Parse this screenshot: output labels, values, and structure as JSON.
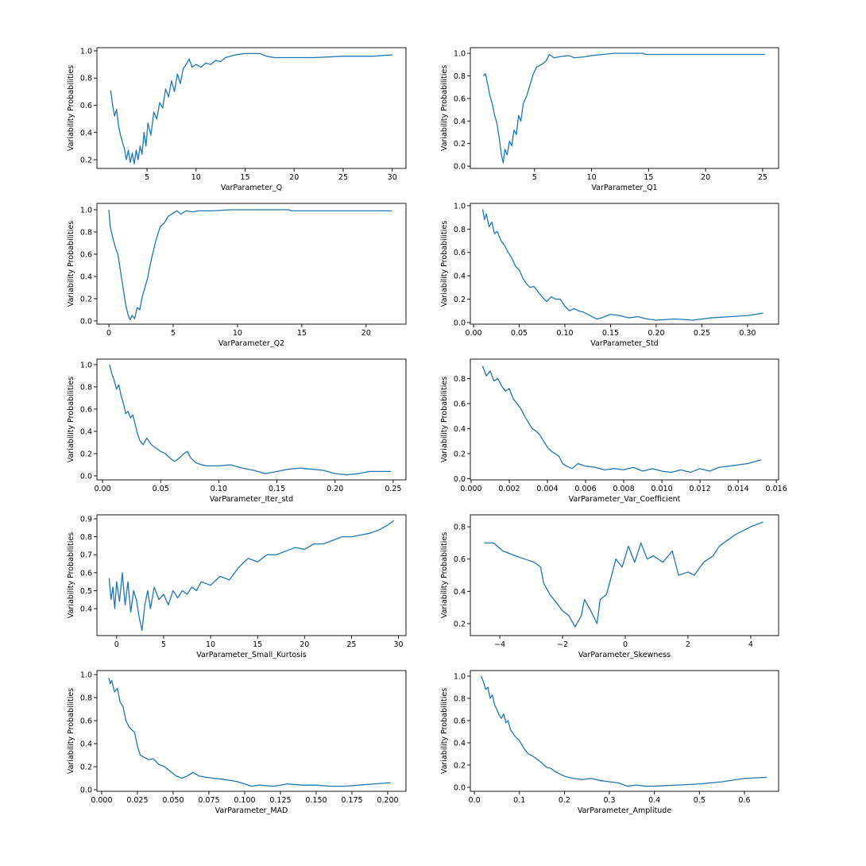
{
  "chart_data": [
    {
      "type": "line",
      "xlabel": "VarParameter_Q",
      "ylabel": "Variability Probabilities",
      "color": "#1f77b4",
      "x": [
        1.3,
        1.5,
        1.7,
        1.9,
        2.1,
        2.3,
        2.5,
        2.7,
        2.9,
        3.1,
        3.3,
        3.5,
        3.7,
        3.9,
        4.1,
        4.3,
        4.5,
        4.7,
        4.9,
        5.1,
        5.4,
        5.7,
        6.0,
        6.3,
        6.6,
        6.9,
        7.2,
        7.5,
        7.8,
        8.1,
        8.4,
        8.7,
        9.0,
        9.3,
        9.6,
        10,
        10.5,
        11,
        11.5,
        12,
        12.5,
        13,
        14,
        15,
        16.5,
        17.2,
        18,
        20,
        22,
        25,
        28,
        30
      ],
      "values": [
        0.71,
        0.6,
        0.52,
        0.57,
        0.45,
        0.38,
        0.33,
        0.28,
        0.2,
        0.27,
        0.18,
        0.25,
        0.17,
        0.27,
        0.2,
        0.3,
        0.24,
        0.4,
        0.3,
        0.47,
        0.38,
        0.55,
        0.5,
        0.62,
        0.58,
        0.72,
        0.66,
        0.78,
        0.7,
        0.83,
        0.76,
        0.87,
        0.9,
        0.94,
        0.88,
        0.9,
        0.88,
        0.91,
        0.9,
        0.93,
        0.92,
        0.95,
        0.97,
        0.98,
        0.98,
        0.96,
        0.95,
        0.95,
        0.95,
        0.96,
        0.96,
        0.97
      ],
      "xlim": [
        -0.1,
        31.4
      ],
      "ylim": [
        0.136,
        1.023
      ],
      "xticks": [
        5,
        10,
        15,
        20,
        25,
        30
      ],
      "yticks": [
        0.2,
        0.4,
        0.6,
        0.8,
        {
          "value": 1,
          "label": "1.0"
        }
      ]
    },
    {
      "type": "line",
      "xlabel": "VarParameter_Q1",
      "ylabel": "Variability Probabilities",
      "color": "#1f77b4",
      "x": [
        0.5,
        0.7,
        0.9,
        1.1,
        1.3,
        1.5,
        1.7,
        1.9,
        2.1,
        2.25,
        2.4,
        2.6,
        2.8,
        3.0,
        3.2,
        3.4,
        3.6,
        3.8,
        4.0,
        4.3,
        4.6,
        4.9,
        5.2,
        5.6,
        6.0,
        6.3,
        6.7,
        7.2,
        8,
        8.5,
        9.5,
        10,
        11,
        12,
        14.5,
        14.7,
        25.2
      ],
      "values": [
        0.8,
        0.82,
        0.72,
        0.62,
        0.55,
        0.45,
        0.38,
        0.25,
        0.1,
        0.03,
        0.15,
        0.1,
        0.22,
        0.18,
        0.32,
        0.28,
        0.45,
        0.4,
        0.55,
        0.62,
        0.72,
        0.82,
        0.88,
        0.9,
        0.93,
        0.99,
        0.96,
        0.97,
        0.98,
        0.96,
        0.97,
        0.98,
        0.99,
        1.0,
        1.0,
        0.99,
        0.99
      ],
      "xlim": [
        -0.63,
        26.4
      ],
      "ylim": [
        -0.02,
        1.05
      ],
      "xticks": [
        5,
        10,
        15,
        20,
        25
      ],
      "yticks": [
        {
          "value": 0,
          "label": "0.0"
        },
        0.2,
        0.4,
        0.6,
        0.8,
        {
          "value": 1,
          "label": "1.0"
        }
      ]
    },
    {
      "type": "line",
      "xlabel": "VarParameter_Q2",
      "ylabel": "Variability Probabilities",
      "color": "#1f77b4",
      "x": [
        0,
        0.1,
        0.3,
        0.5,
        0.7,
        0.9,
        1.1,
        1.3,
        1.5,
        1.65,
        1.8,
        2.0,
        2.2,
        2.4,
        2.6,
        2.8,
        3.0,
        3.2,
        3.4,
        3.6,
        3.8,
        4.0,
        4.3,
        4.6,
        5.0,
        5.3,
        5.6,
        6.0,
        6.5,
        7,
        8,
        9.5,
        14,
        14.2,
        22
      ],
      "values": [
        1.0,
        0.85,
        0.75,
        0.66,
        0.6,
        0.45,
        0.3,
        0.15,
        0.05,
        0.01,
        0.05,
        0.02,
        0.12,
        0.1,
        0.22,
        0.3,
        0.38,
        0.5,
        0.6,
        0.7,
        0.78,
        0.85,
        0.88,
        0.94,
        0.97,
        0.99,
        0.96,
        0.99,
        0.98,
        0.99,
        0.99,
        1.0,
        1.0,
        0.99,
        0.99
      ],
      "xlim": [
        -0.93,
        23.1
      ],
      "ylim": [
        -0.029,
        1.057
      ],
      "xticks": [
        0,
        5,
        10,
        15,
        20
      ],
      "yticks": [
        {
          "value": 0,
          "label": "0.0"
        },
        0.2,
        0.4,
        0.6,
        0.8,
        {
          "value": 1,
          "label": "1.0"
        }
      ]
    },
    {
      "type": "line",
      "xlabel": "VarParameter_Std",
      "ylabel": "Variability Probabilities",
      "color": "#1f77b4",
      "x": [
        0.01,
        0.012,
        0.014,
        0.017,
        0.02,
        0.023,
        0.026,
        0.03,
        0.034,
        0.038,
        0.042,
        0.046,
        0.05,
        0.054,
        0.058,
        0.062,
        0.066,
        0.07,
        0.075,
        0.08,
        0.085,
        0.09,
        0.095,
        0.1,
        0.105,
        0.11,
        0.115,
        0.12,
        0.125,
        0.13,
        0.135,
        0.14,
        0.15,
        0.16,
        0.17,
        0.18,
        0.19,
        0.2,
        0.22,
        0.24,
        0.26,
        0.28,
        0.3,
        0.317
      ],
      "values": [
        0.97,
        0.88,
        0.93,
        0.82,
        0.86,
        0.76,
        0.78,
        0.7,
        0.66,
        0.6,
        0.55,
        0.48,
        0.45,
        0.38,
        0.33,
        0.3,
        0.31,
        0.27,
        0.22,
        0.18,
        0.22,
        0.2,
        0.2,
        0.14,
        0.1,
        0.12,
        0.1,
        0.09,
        0.07,
        0.05,
        0.03,
        0.04,
        0.07,
        0.06,
        0.04,
        0.05,
        0.03,
        0.02,
        0.03,
        0.02,
        0.04,
        0.05,
        0.06,
        0.08
      ],
      "xlim": [
        -0.0035,
        0.334
      ],
      "ylim": [
        -0.014,
        1.02
      ],
      "xticks": [
        {
          "value": 0,
          "label": "0.00"
        },
        0.05,
        {
          "value": 0.1,
          "label": "0.10"
        },
        0.15,
        {
          "value": 0.2,
          "label": "0.20"
        },
        0.25,
        {
          "value": 0.3,
          "label": "0.30"
        }
      ],
      "yticks": [
        {
          "value": 0,
          "label": "0.0"
        },
        0.2,
        0.4,
        0.6,
        0.8,
        {
          "value": 1,
          "label": "1.0"
        }
      ]
    },
    {
      "type": "line",
      "xlabel": "VarParameter_Iter_std",
      "ylabel": "Variability Probabilities",
      "color": "#1f77b4",
      "x": [
        0.006,
        0.008,
        0.01,
        0.012,
        0.014,
        0.016,
        0.018,
        0.02,
        0.022,
        0.024,
        0.026,
        0.028,
        0.03,
        0.032,
        0.035,
        0.038,
        0.042,
        0.046,
        0.05,
        0.054,
        0.058,
        0.062,
        0.066,
        0.07,
        0.073,
        0.076,
        0.08,
        0.085,
        0.09,
        0.1,
        0.11,
        0.12,
        0.13,
        0.14,
        0.15,
        0.16,
        0.17,
        0.18,
        0.19,
        0.2,
        0.21,
        0.22,
        0.23,
        0.248
      ],
      "values": [
        1.0,
        0.92,
        0.86,
        0.78,
        0.82,
        0.72,
        0.65,
        0.56,
        0.58,
        0.52,
        0.55,
        0.47,
        0.38,
        0.32,
        0.28,
        0.34,
        0.28,
        0.25,
        0.22,
        0.2,
        0.16,
        0.13,
        0.16,
        0.2,
        0.22,
        0.16,
        0.12,
        0.1,
        0.09,
        0.09,
        0.1,
        0.07,
        0.05,
        0.02,
        0.04,
        0.06,
        0.07,
        0.06,
        0.05,
        0.02,
        0.01,
        0.02,
        0.04,
        0.04
      ],
      "xlim": [
        -0.0048,
        0.261
      ],
      "ylim": [
        -0.036,
        1.05
      ],
      "xticks": [
        {
          "value": 0,
          "label": "0.00"
        },
        0.05,
        {
          "value": 0.1,
          "label": "0.10"
        },
        0.15,
        {
          "value": 0.2,
          "label": "0.20"
        },
        0.25
      ],
      "yticks": [
        {
          "value": 0,
          "label": "0.0"
        },
        0.2,
        0.4,
        0.6,
        0.8,
        {
          "value": 1,
          "label": "1.0"
        }
      ]
    },
    {
      "type": "line",
      "xlabel": "VarParameter_Var_Coefficient",
      "ylabel": "Variability Probabilities",
      "color": "#1f77b4",
      "x": [
        0.0006,
        0.0008,
        0.001,
        0.0012,
        0.0014,
        0.0016,
        0.0018,
        0.002,
        0.0022,
        0.0024,
        0.0026,
        0.0028,
        0.003,
        0.0032,
        0.0034,
        0.0036,
        0.0038,
        0.004,
        0.0042,
        0.0044,
        0.0046,
        0.0048,
        0.005,
        0.0053,
        0.0056,
        0.006,
        0.0065,
        0.007,
        0.0075,
        0.008,
        0.0085,
        0.009,
        0.0095,
        0.01,
        0.0105,
        0.011,
        0.0115,
        0.012,
        0.0125,
        0.013,
        0.0135,
        0.014,
        0.0145,
        0.0152
      ],
      "values": [
        0.9,
        0.82,
        0.86,
        0.78,
        0.8,
        0.74,
        0.7,
        0.72,
        0.64,
        0.6,
        0.56,
        0.5,
        0.45,
        0.4,
        0.38,
        0.35,
        0.3,
        0.25,
        0.22,
        0.2,
        0.18,
        0.12,
        0.1,
        0.08,
        0.12,
        0.1,
        0.09,
        0.07,
        0.08,
        0.07,
        0.09,
        0.06,
        0.08,
        0.06,
        0.05,
        0.07,
        0.05,
        0.08,
        0.06,
        0.09,
        0.1,
        0.11,
        0.12,
        0.15
      ],
      "xlim": [
        -4e-05,
        0.01612
      ],
      "ylim": [
        -0.01,
        0.955
      ],
      "xticks": [
        {
          "value": 0,
          "label": "0.000"
        },
        0.002,
        0.004,
        0.006,
        0.008,
        {
          "value": 0.01,
          "label": "0.010"
        },
        0.012,
        0.014,
        0.016
      ],
      "yticks": [
        {
          "value": 0,
          "label": "0.0"
        },
        0.2,
        0.4,
        0.6,
        0.8
      ]
    },
    {
      "type": "line",
      "xlabel": "VarParameter_Small_Kurtosis",
      "ylabel": "Variability Probabilities",
      "color": "#1f77b4",
      "x": [
        -0.8,
        -0.6,
        -0.4,
        -0.2,
        0,
        0.3,
        0.6,
        0.9,
        1.2,
        1.5,
        1.8,
        2.1,
        2.4,
        2.7,
        3.0,
        3.3,
        3.6,
        4,
        4.5,
        5,
        5.5,
        6,
        6.5,
        7,
        7.5,
        8,
        8.5,
        9,
        10,
        11,
        12,
        13,
        14,
        15,
        16,
        17,
        18,
        19,
        20,
        21,
        22,
        23,
        24,
        25,
        26,
        27,
        28,
        29,
        29.5
      ],
      "values": [
        0.57,
        0.45,
        0.52,
        0.4,
        0.55,
        0.44,
        0.6,
        0.42,
        0.55,
        0.38,
        0.5,
        0.45,
        0.35,
        0.28,
        0.42,
        0.5,
        0.4,
        0.52,
        0.45,
        0.48,
        0.42,
        0.5,
        0.46,
        0.5,
        0.48,
        0.52,
        0.5,
        0.55,
        0.53,
        0.58,
        0.56,
        0.63,
        0.68,
        0.66,
        0.7,
        0.7,
        0.72,
        0.74,
        0.73,
        0.76,
        0.76,
        0.78,
        0.8,
        0.8,
        0.81,
        0.82,
        0.84,
        0.87,
        0.89
      ],
      "xlim": [
        -2.1,
        30.8
      ],
      "ylim": [
        0.25,
        0.922
      ],
      "xticks": [
        0,
        5,
        10,
        15,
        20,
        25,
        30
      ],
      "yticks": [
        0.4,
        0.5,
        0.6,
        0.7,
        0.8,
        0.9
      ]
    },
    {
      "type": "line",
      "xlabel": "VarParameter_Skewness",
      "ylabel": "Variability Probabilities",
      "color": "#1f77b4",
      "x": [
        -4.5,
        -4.2,
        -3.9,
        -3.5,
        -3.2,
        -2.9,
        -2.7,
        -2.6,
        -2.4,
        -2.2,
        -2.0,
        -1.8,
        -1.6,
        -1.4,
        -1.3,
        -1.1,
        -0.9,
        -0.8,
        -0.6,
        -0.5,
        -0.3,
        -0.1,
        0.1,
        0.3,
        0.5,
        0.7,
        0.9,
        1.2,
        1.5,
        1.7,
        2.0,
        2.2,
        2.5,
        2.8,
        3.0,
        3.5,
        4.0,
        4.4
      ],
      "values": [
        0.7,
        0.7,
        0.65,
        0.62,
        0.6,
        0.58,
        0.55,
        0.45,
        0.38,
        0.33,
        0.28,
        0.25,
        0.18,
        0.25,
        0.35,
        0.28,
        0.2,
        0.35,
        0.38,
        0.45,
        0.6,
        0.55,
        0.68,
        0.58,
        0.7,
        0.6,
        0.62,
        0.58,
        0.65,
        0.5,
        0.52,
        0.5,
        0.58,
        0.62,
        0.68,
        0.75,
        0.8,
        0.83
      ],
      "xlim": [
        -4.94,
        4.89
      ],
      "ylim": [
        0.126,
        0.874
      ],
      "xticks": [
        {
          "value": -4,
          "label": "−4"
        },
        {
          "value": -2,
          "label": "−2"
        },
        0,
        2,
        4
      ],
      "yticks": [
        0.2,
        0.4,
        0.6,
        0.8
      ]
    },
    {
      "type": "line",
      "xlabel": "VarParameter_MAD",
      "ylabel": "Variability Probabilities",
      "color": "#1f77b4",
      "x": [
        0.005,
        0.006,
        0.007,
        0.009,
        0.011,
        0.013,
        0.015,
        0.017,
        0.019,
        0.021,
        0.023,
        0.025,
        0.027,
        0.03,
        0.033,
        0.036,
        0.04,
        0.044,
        0.048,
        0.052,
        0.056,
        0.06,
        0.064,
        0.068,
        0.072,
        0.078,
        0.085,
        0.09,
        0.095,
        0.1,
        0.105,
        0.11,
        0.12,
        0.13,
        0.14,
        0.15,
        0.16,
        0.17,
        0.18,
        0.19,
        0.202
      ],
      "values": [
        0.97,
        0.92,
        0.95,
        0.85,
        0.88,
        0.76,
        0.72,
        0.6,
        0.55,
        0.52,
        0.5,
        0.38,
        0.3,
        0.28,
        0.26,
        0.27,
        0.22,
        0.2,
        0.16,
        0.12,
        0.1,
        0.12,
        0.15,
        0.12,
        0.11,
        0.1,
        0.09,
        0.08,
        0.07,
        0.05,
        0.03,
        0.04,
        0.03,
        0.05,
        0.04,
        0.04,
        0.03,
        0.03,
        0.04,
        0.05,
        0.06
      ],
      "xlim": [
        -0.0033,
        0.2128
      ],
      "ylim": [
        -0.014,
        1.035
      ],
      "xticks": [
        {
          "value": 0,
          "label": "0.000"
        },
        0.025,
        {
          "value": 0.05,
          "label": "0.050"
        },
        0.075,
        {
          "value": 0.1,
          "label": "0.100"
        },
        0.125,
        {
          "value": 0.15,
          "label": "0.150"
        },
        0.175,
        {
          "value": 0.2,
          "label": "0.200"
        }
      ],
      "yticks": [
        {
          "value": 0,
          "label": "0.0"
        },
        0.2,
        0.4,
        0.6,
        0.8,
        {
          "value": 1,
          "label": "1.0"
        }
      ]
    },
    {
      "type": "line",
      "xlabel": "VarParameter_Amplitude",
      "ylabel": "Variability Probabilities",
      "color": "#1f77b4",
      "x": [
        0.015,
        0.02,
        0.025,
        0.03,
        0.035,
        0.04,
        0.045,
        0.05,
        0.055,
        0.06,
        0.065,
        0.07,
        0.075,
        0.08,
        0.09,
        0.1,
        0.11,
        0.12,
        0.13,
        0.14,
        0.15,
        0.16,
        0.17,
        0.18,
        0.19,
        0.2,
        0.22,
        0.24,
        0.26,
        0.28,
        0.3,
        0.32,
        0.34,
        0.36,
        0.38,
        0.4,
        0.45,
        0.5,
        0.55,
        0.6,
        0.65
      ],
      "values": [
        1.0,
        0.95,
        0.88,
        0.9,
        0.8,
        0.83,
        0.74,
        0.7,
        0.65,
        0.62,
        0.66,
        0.58,
        0.6,
        0.52,
        0.46,
        0.42,
        0.35,
        0.3,
        0.28,
        0.25,
        0.22,
        0.18,
        0.17,
        0.14,
        0.12,
        0.1,
        0.08,
        0.07,
        0.08,
        0.06,
        0.05,
        0.04,
        0.01,
        0.02,
        0.01,
        0.01,
        0.02,
        0.03,
        0.05,
        0.08,
        0.09
      ],
      "xlim": [
        -0.009,
        0.676
      ],
      "ylim": [
        -0.036,
        1.05
      ],
      "xticks": [
        {
          "value": 0,
          "label": "0.0"
        },
        0.1,
        0.2,
        0.3,
        0.4,
        0.5,
        0.6
      ],
      "yticks": [
        {
          "value": 0,
          "label": "0.0"
        },
        0.2,
        0.4,
        0.6,
        0.8,
        {
          "value": 1,
          "label": "1.0"
        }
      ]
    }
  ]
}
